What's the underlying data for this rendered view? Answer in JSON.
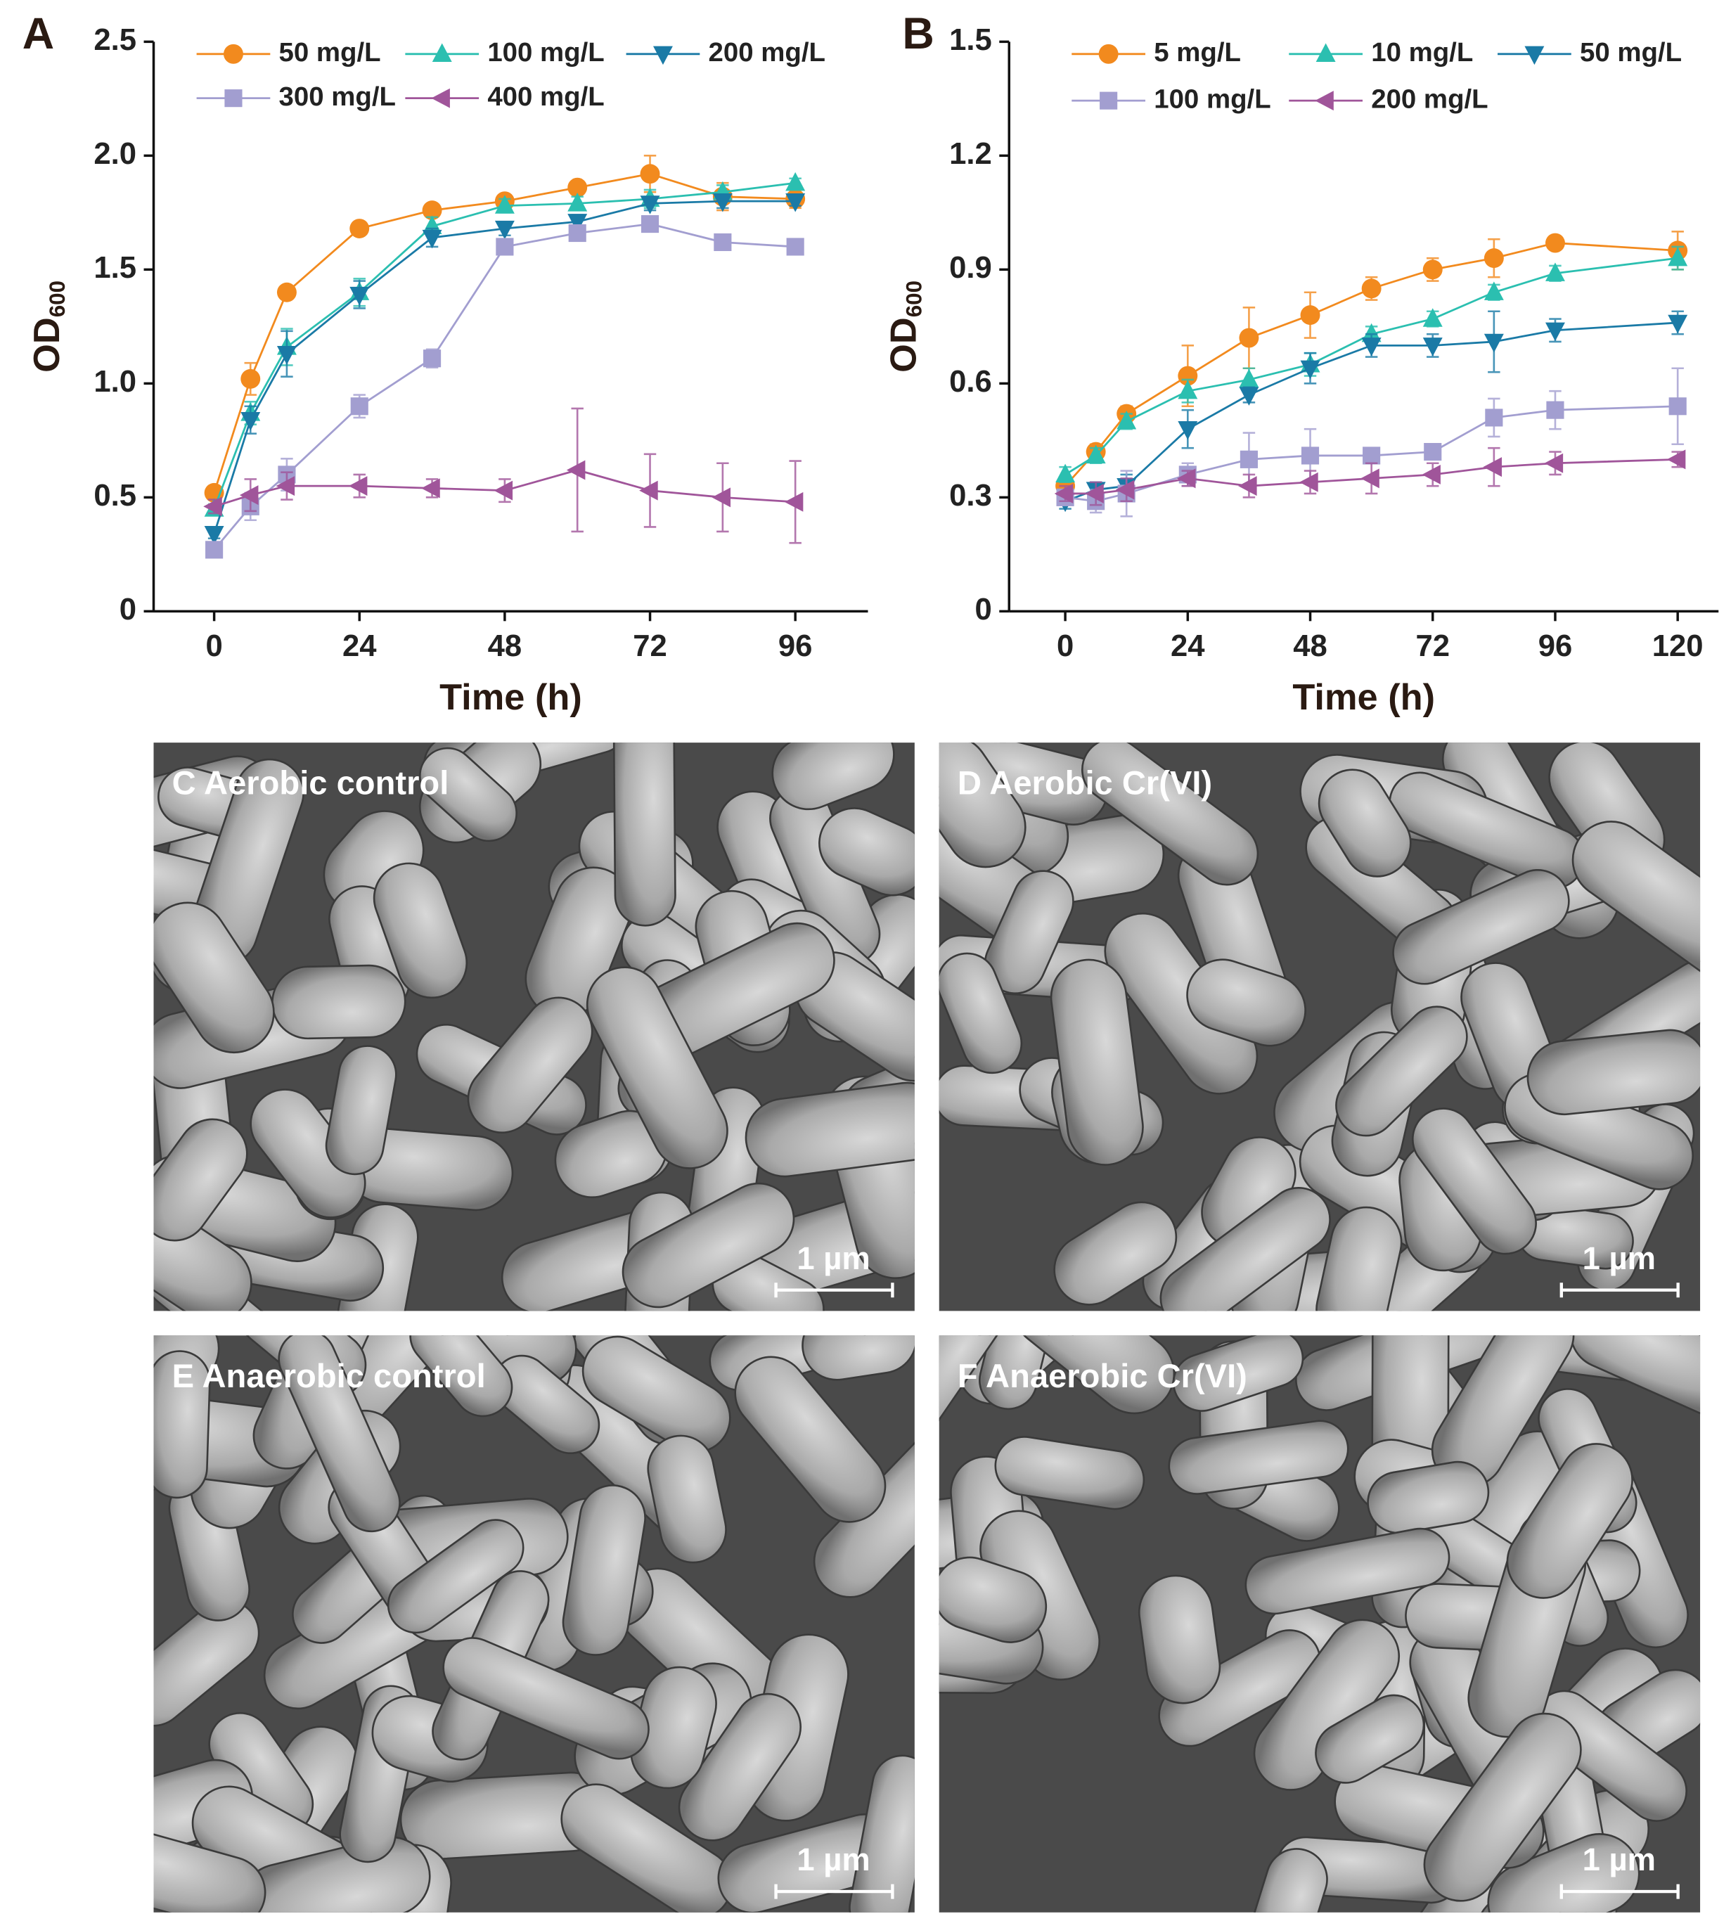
{
  "chart_data": [
    {
      "type": "line",
      "panel": "A",
      "y_label": "OD",
      "y_label_sub": "600",
      "x_label": "Time (h)",
      "x": [
        0,
        6,
        12,
        24,
        36,
        48,
        60,
        72,
        84,
        96
      ],
      "xlim": [
        -10,
        108
      ],
      "xticks": [
        0,
        24,
        48,
        72,
        96
      ],
      "ylim": [
        0,
        2.5
      ],
      "yticks": [
        0,
        0.5,
        {
          "value": 1,
          "label": "1.0"
        },
        1.5,
        {
          "value": 2,
          "label": "2.0"
        },
        2.5
      ],
      "series": [
        {
          "name": "50 mg/L",
          "color": "#f28a1e",
          "marker": "circle",
          "values": [
            0.52,
            1.02,
            1.4,
            1.68,
            1.76,
            1.8,
            1.86,
            1.92,
            1.82,
            1.81
          ],
          "errors": [
            0.03,
            0.07,
            0.02,
            0.02,
            0.02,
            0.02,
            0.02,
            0.08,
            0.06,
            0.04
          ]
        },
        {
          "name": "100 mg/L",
          "color": "#2bbfb0",
          "marker": "triangle-up",
          "values": [
            0.45,
            0.87,
            1.16,
            1.4,
            1.69,
            1.78,
            1.79,
            1.81,
            1.84,
            1.88
          ],
          "errors": [
            0.02,
            0.05,
            0.08,
            0.06,
            0.04,
            0.03,
            0.03,
            0.04,
            0.03,
            0.02
          ]
        },
        {
          "name": "200 mg/L",
          "color": "#1a7aa6",
          "marker": "triangle-down",
          "values": [
            0.34,
            0.84,
            1.13,
            1.39,
            1.64,
            1.68,
            1.71,
            1.79,
            1.8,
            1.8
          ],
          "errors": [
            0.02,
            0.06,
            0.1,
            0.06,
            0.04,
            0.03,
            0.03,
            0.03,
            0.03,
            0.02
          ]
        },
        {
          "name": "300 mg/L",
          "color": "#a29ed0",
          "marker": "square",
          "values": [
            0.27,
            0.46,
            0.6,
            0.9,
            1.11,
            1.6,
            1.66,
            1.7,
            1.62,
            1.6
          ],
          "errors": [
            0.02,
            0.06,
            0.07,
            0.05,
            0.04,
            0.03,
            0.03,
            0.02,
            0.02,
            0.02
          ]
        },
        {
          "name": "400 mg/L",
          "color": "#a0559a",
          "marker": "triangle-left",
          "values": [
            0.46,
            0.51,
            0.55,
            0.55,
            0.54,
            0.53,
            0.62,
            0.53,
            0.5,
            0.48
          ],
          "errors": [
            0.03,
            0.07,
            0.06,
            0.05,
            0.04,
            0.05,
            0.27,
            0.16,
            0.15,
            0.18
          ]
        }
      ]
    },
    {
      "type": "line",
      "panel": "B",
      "y_label": "OD",
      "y_label_sub": "600",
      "x_label": "Time (h)",
      "x": [
        0,
        6,
        12,
        24,
        36,
        48,
        60,
        72,
        84,
        96,
        120
      ],
      "xlim": [
        -11,
        128
      ],
      "xticks": [
        0,
        24,
        48,
        72,
        96,
        120
      ],
      "ylim": [
        0,
        1.5
      ],
      "yticks": [
        0,
        0.3,
        0.6,
        0.9,
        1.2,
        1.5
      ],
      "series": [
        {
          "name": "5 mg/L",
          "color": "#f28a1e",
          "marker": "circle",
          "values": [
            0.33,
            0.42,
            0.52,
            0.62,
            0.72,
            0.78,
            0.85,
            0.9,
            0.93,
            0.97,
            0.95
          ],
          "errors": [
            0.02,
            0.02,
            0.02,
            0.08,
            0.08,
            0.06,
            0.03,
            0.03,
            0.05,
            0.01,
            0.05
          ]
        },
        {
          "name": "10 mg/L",
          "color": "#2bbfb0",
          "marker": "triangle-up",
          "values": [
            0.36,
            0.41,
            0.5,
            0.58,
            0.61,
            0.65,
            0.73,
            0.77,
            0.84,
            0.89,
            0.93
          ],
          "errors": [
            0.02,
            0.02,
            0.02,
            0.03,
            0.03,
            0.03,
            0.02,
            0.02,
            0.02,
            0.02,
            0.03
          ]
        },
        {
          "name": "50 mg/L",
          "color": "#1a7aa6",
          "marker": "triangle-down",
          "values": [
            0.29,
            0.32,
            0.33,
            0.48,
            0.57,
            0.64,
            0.7,
            0.7,
            0.71,
            0.74,
            0.76
          ],
          "errors": [
            0.02,
            0.02,
            0.03,
            0.05,
            0.02,
            0.04,
            0.03,
            0.03,
            0.08,
            0.03,
            0.03
          ]
        },
        {
          "name": "100 mg/L",
          "color": "#a29ed0",
          "marker": "square",
          "values": [
            0.3,
            0.29,
            0.31,
            0.36,
            0.4,
            0.41,
            0.41,
            0.42,
            0.51,
            0.53,
            0.54
          ],
          "errors": [
            0.02,
            0.03,
            0.06,
            0.03,
            0.07,
            0.07,
            0.01,
            0.01,
            0.05,
            0.05,
            0.1
          ]
        },
        {
          "name": "200 mg/L",
          "color": "#a0559a",
          "marker": "triangle-left",
          "values": [
            0.31,
            0.31,
            0.32,
            0.35,
            0.33,
            0.34,
            0.35,
            0.36,
            0.38,
            0.39,
            0.4
          ],
          "errors": [
            0.02,
            0.03,
            0.03,
            0.02,
            0.03,
            0.03,
            0.04,
            0.03,
            0.05,
            0.03,
            0.02
          ]
        }
      ]
    }
  ],
  "images": [
    {
      "label": "C Aerobic control",
      "scale_bar": "1 µm"
    },
    {
      "label": "D Aerobic Cr(VI)",
      "scale_bar": "1 µm"
    },
    {
      "label": "E Anaerobic control",
      "scale_bar": "1 µm"
    },
    {
      "label": "F Anaerobic Cr(VI)",
      "scale_bar": "1 µm"
    }
  ]
}
